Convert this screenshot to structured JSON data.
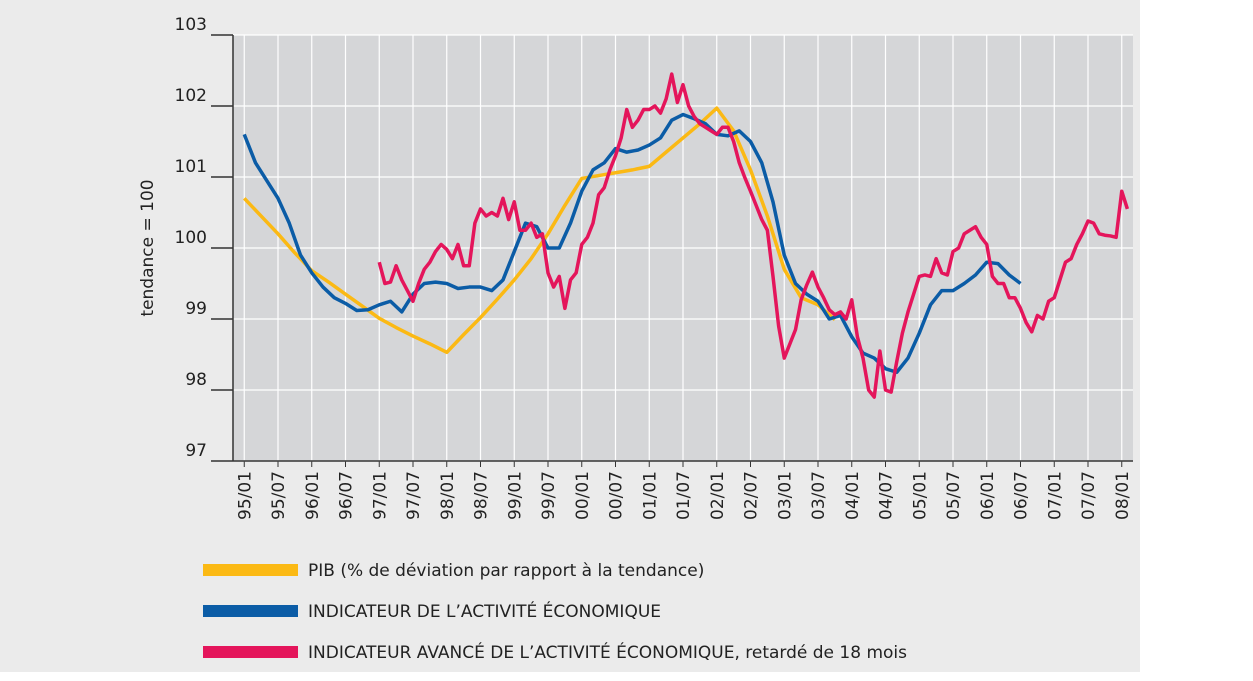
{
  "chart_data": {
    "type": "line",
    "ylabel": "tendance = 100",
    "xlim": [
      "94/11",
      "08/03"
    ],
    "xticks": [
      "95/01",
      "95/07",
      "96/01",
      "96/07",
      "97/01",
      "97/07",
      "98/01",
      "98/07",
      "99/01",
      "99/07",
      "00/01",
      "00/07",
      "01/01",
      "01/07",
      "02/01",
      "02/07",
      "03/01",
      "03/07",
      "04/01",
      "04/07",
      "05/01",
      "05/07",
      "06/01",
      "06/07",
      "07/01",
      "07/07",
      "08/01"
    ],
    "ylim": [
      97,
      103
    ],
    "yticks": [
      97,
      98,
      99,
      100,
      101,
      102,
      103
    ],
    "grid": true,
    "legend": "bottom",
    "series": [
      {
        "name": "PIB (% de déviation par rapport à la tendance)",
        "color": "#fbb914",
        "x": [
          "95/01",
          "95/04",
          "95/07",
          "95/10",
          "96/01",
          "96/04",
          "96/07",
          "96/10",
          "97/01",
          "97/04",
          "97/07",
          "97/10",
          "98/01",
          "98/04",
          "98/07",
          "98/10",
          "99/01",
          "99/04",
          "99/07",
          "99/10",
          "00/01",
          "00/04",
          "00/07",
          "00/10",
          "01/01",
          "01/04",
          "01/07",
          "01/10",
          "02/01",
          "02/04",
          "02/07",
          "02/10",
          "03/01",
          "03/04",
          "03/07",
          "03/10"
        ],
        "values": [
          100.7,
          100.45,
          100.2,
          99.93,
          99.68,
          99.52,
          99.35,
          99.18,
          99.01,
          98.88,
          98.76,
          98.65,
          98.53,
          98.78,
          99.02,
          99.28,
          99.55,
          99.85,
          100.2,
          100.6,
          100.98,
          101.02,
          101.06,
          101.1,
          101.15,
          101.35,
          101.55,
          101.75,
          101.97,
          101.65,
          101.1,
          100.45,
          99.7,
          99.3,
          99.2,
          98.99
        ]
      },
      {
        "name": "INDICATEUR DE L’ACTIVITÉ ÉCONOMIQUE",
        "color": "#0b5ca6",
        "x": [
          "95/01",
          "95/03",
          "95/05",
          "95/07",
          "95/09",
          "95/11",
          "96/01",
          "96/03",
          "96/05",
          "96/07",
          "96/09",
          "96/11",
          "97/01",
          "97/03",
          "97/05",
          "97/07",
          "97/09",
          "97/11",
          "98/01",
          "98/03",
          "98/05",
          "98/07",
          "98/09",
          "98/11",
          "99/01",
          "99/03",
          "99/05",
          "99/07",
          "99/09",
          "99/11",
          "00/01",
          "00/03",
          "00/05",
          "00/07",
          "00/09",
          "00/11",
          "01/01",
          "01/03",
          "01/05",
          "01/07",
          "01/09",
          "01/11",
          "02/01",
          "02/03",
          "02/05",
          "02/07",
          "02/09",
          "02/11",
          "03/01",
          "03/03",
          "03/05",
          "03/07",
          "03/09",
          "03/11",
          "04/01",
          "04/03",
          "04/05",
          "04/07",
          "04/09",
          "04/11",
          "05/01",
          "05/03",
          "05/05",
          "05/07",
          "05/09",
          "05/11",
          "06/01",
          "06/03",
          "06/05",
          "06/07"
        ],
        "values": [
          101.6,
          101.2,
          100.95,
          100.7,
          100.35,
          99.9,
          99.65,
          99.45,
          99.3,
          99.22,
          99.12,
          99.13,
          99.2,
          99.25,
          99.1,
          99.35,
          99.5,
          99.52,
          99.5,
          99.43,
          99.45,
          99.45,
          99.4,
          99.55,
          99.95,
          100.35,
          100.3,
          100.0,
          100.0,
          100.35,
          100.8,
          101.1,
          101.2,
          101.4,
          101.35,
          101.38,
          101.45,
          101.55,
          101.8,
          101.88,
          101.82,
          101.75,
          101.6,
          101.58,
          101.65,
          101.5,
          101.2,
          100.65,
          99.9,
          99.5,
          99.35,
          99.25,
          99.0,
          99.05,
          98.75,
          98.52,
          98.45,
          98.3,
          98.25,
          98.45,
          98.8,
          99.2,
          99.4,
          99.4,
          99.5,
          99.62,
          99.8,
          99.78,
          99.62,
          99.5
        ]
      },
      {
        "name": "INDICATEUR AVANCÉ DE L’ACTIVITÉ ÉCONOMIQUE, retardé de 18 mois",
        "color": "#e4155b",
        "x": [
          "97/01",
          "97/02",
          "97/03",
          "97/04",
          "97/05",
          "97/06",
          "97/07",
          "97/08",
          "97/09",
          "97/10",
          "97/11",
          "97/12",
          "98/01",
          "98/02",
          "98/03",
          "98/04",
          "98/05",
          "98/06",
          "98/07",
          "98/08",
          "98/09",
          "98/10",
          "98/11",
          "98/12",
          "99/01",
          "99/02",
          "99/03",
          "99/04",
          "99/05",
          "99/06",
          "99/07",
          "99/08",
          "99/09",
          "99/10",
          "99/11",
          "99/12",
          "00/01",
          "00/02",
          "00/03",
          "00/04",
          "00/05",
          "00/06",
          "00/07",
          "00/08",
          "00/09",
          "00/10",
          "00/11",
          "00/12",
          "01/01",
          "01/02",
          "01/03",
          "01/04",
          "01/05",
          "01/06",
          "01/07",
          "01/08",
          "01/09",
          "01/10",
          "01/11",
          "01/12",
          "02/01",
          "02/02",
          "02/03",
          "02/04",
          "02/05",
          "02/06",
          "02/07",
          "02/08",
          "02/09",
          "02/10",
          "02/11",
          "02/12",
          "03/01",
          "03/02",
          "03/03",
          "03/04",
          "03/05",
          "03/06",
          "03/07",
          "03/08",
          "03/09",
          "03/10",
          "03/11",
          "03/12",
          "04/01",
          "04/02",
          "04/03",
          "04/04",
          "04/05",
          "04/06",
          "04/07",
          "04/08",
          "04/09",
          "04/10",
          "04/11",
          "04/12",
          "05/01",
          "05/02",
          "05/03",
          "05/04",
          "05/05",
          "05/06",
          "05/07",
          "05/08",
          "05/09",
          "05/10",
          "05/11",
          "05/12",
          "06/01",
          "06/02",
          "06/03",
          "06/04",
          "06/05",
          "06/06",
          "06/07",
          "06/08",
          "06/09",
          "06/10",
          "06/11",
          "06/12",
          "07/01",
          "07/02",
          "07/03",
          "07/04",
          "07/05",
          "07/06",
          "07/07",
          "07/08",
          "07/09",
          "07/10",
          "07/11",
          "07/12",
          "08/01",
          "08/02"
        ],
        "values": [
          99.8,
          99.5,
          99.52,
          99.75,
          99.55,
          99.4,
          99.25,
          99.5,
          99.7,
          99.8,
          99.95,
          100.05,
          99.98,
          99.85,
          100.05,
          99.75,
          99.75,
          100.35,
          100.55,
          100.45,
          100.5,
          100.45,
          100.7,
          100.4,
          100.65,
          100.25,
          100.25,
          100.35,
          100.15,
          100.2,
          99.65,
          99.45,
          99.6,
          99.15,
          99.55,
          99.65,
          100.05,
          100.15,
          100.35,
          100.75,
          100.85,
          101.1,
          101.3,
          101.55,
          101.95,
          101.7,
          101.8,
          101.95,
          101.95,
          102.0,
          101.9,
          102.1,
          102.45,
          102.05,
          102.3,
          102.0,
          101.85,
          101.75,
          101.7,
          101.65,
          101.6,
          101.7,
          101.7,
          101.5,
          101.2,
          100.99,
          100.8,
          100.6,
          100.4,
          100.25,
          99.6,
          98.9,
          98.45,
          98.65,
          98.85,
          99.27,
          99.48,
          99.66,
          99.45,
          99.3,
          99.13,
          99.06,
          99.1,
          99.0,
          99.27,
          98.75,
          98.45,
          98.0,
          97.9,
          98.55,
          98.0,
          97.97,
          98.4,
          98.8,
          99.1,
          99.35,
          99.6,
          99.62,
          99.6,
          99.85,
          99.65,
          99.62,
          99.95,
          100.0,
          100.2,
          100.25,
          100.3,
          100.15,
          100.05,
          99.6,
          99.5,
          99.5,
          99.3,
          99.3,
          99.15,
          98.95,
          98.82,
          99.05,
          99.0,
          99.25,
          99.3,
          99.55,
          99.8,
          99.85,
          100.05,
          100.2,
          100.38,
          100.35,
          100.2,
          100.18,
          100.17,
          100.15,
          100.8,
          100.55
        ]
      }
    ]
  }
}
